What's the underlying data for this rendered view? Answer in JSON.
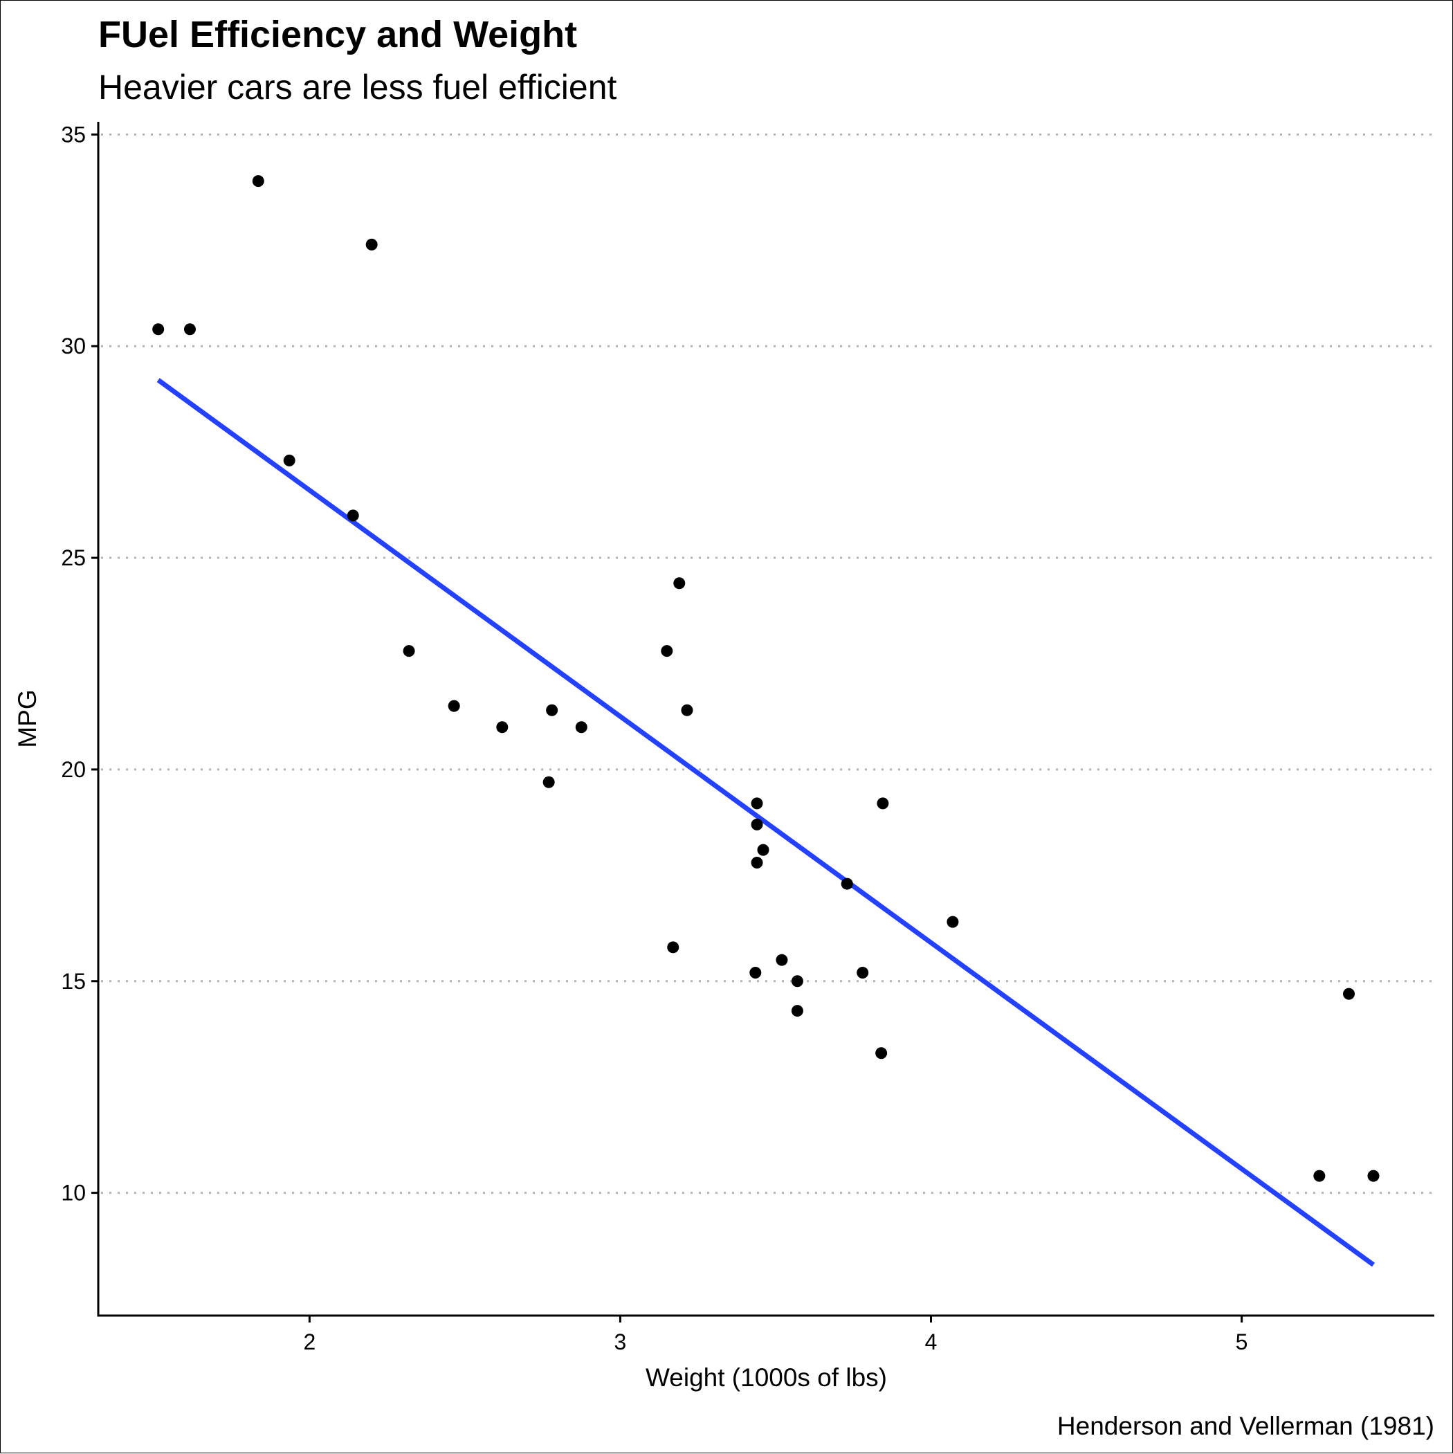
{
  "chart_data": {
    "type": "scatter",
    "title": "FUel Efficiency and Weight",
    "subtitle": "Heavier cars are less fuel efficient",
    "xlabel": "Weight (1000s of lbs)",
    "ylabel": "MPG",
    "caption": "Henderson and Vellerman (1981)",
    "xlim": [
      1.32,
      5.62
    ],
    "ylim": [
      7.1,
      35.3
    ],
    "xticks": [
      2,
      3,
      4,
      5
    ],
    "yticks": [
      10,
      15,
      20,
      25,
      30,
      35
    ],
    "grid": "horizontal dotted",
    "points": [
      {
        "x": 1.513,
        "y": 30.4
      },
      {
        "x": 1.615,
        "y": 30.4
      },
      {
        "x": 1.835,
        "y": 33.9
      },
      {
        "x": 1.935,
        "y": 27.3
      },
      {
        "x": 2.14,
        "y": 26.0
      },
      {
        "x": 2.2,
        "y": 32.4
      },
      {
        "x": 2.32,
        "y": 22.8
      },
      {
        "x": 2.465,
        "y": 21.5
      },
      {
        "x": 2.62,
        "y": 21.0
      },
      {
        "x": 2.77,
        "y": 19.7
      },
      {
        "x": 2.78,
        "y": 21.4
      },
      {
        "x": 2.875,
        "y": 21.0
      },
      {
        "x": 3.15,
        "y": 22.8
      },
      {
        "x": 3.17,
        "y": 15.8
      },
      {
        "x": 3.19,
        "y": 24.4
      },
      {
        "x": 3.215,
        "y": 21.4
      },
      {
        "x": 3.435,
        "y": 15.2
      },
      {
        "x": 3.44,
        "y": 19.2
      },
      {
        "x": 3.44,
        "y": 18.7
      },
      {
        "x": 3.44,
        "y": 17.8
      },
      {
        "x": 3.46,
        "y": 18.1
      },
      {
        "x": 3.52,
        "y": 15.5
      },
      {
        "x": 3.57,
        "y": 15.0
      },
      {
        "x": 3.57,
        "y": 14.3
      },
      {
        "x": 3.73,
        "y": 17.3
      },
      {
        "x": 3.78,
        "y": 15.2
      },
      {
        "x": 3.84,
        "y": 13.3
      },
      {
        "x": 3.845,
        "y": 19.2
      },
      {
        "x": 4.07,
        "y": 16.4
      },
      {
        "x": 5.25,
        "y": 10.4
      },
      {
        "x": 5.345,
        "y": 14.7
      },
      {
        "x": 5.424,
        "y": 10.4
      }
    ],
    "fit_line": {
      "x": [
        1.513,
        5.424
      ],
      "y": [
        29.2,
        8.3
      ]
    },
    "colors": {
      "points": "#000000",
      "fit_line": "#2341ff",
      "grid": "#b3b3b3",
      "axis": "#000000"
    }
  }
}
